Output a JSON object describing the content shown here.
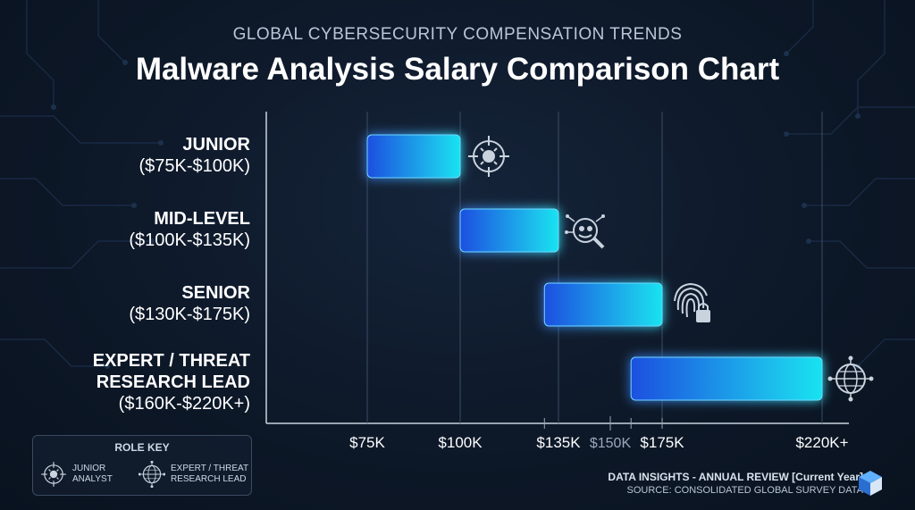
{
  "header": {
    "subtitle": "GLOBAL CYBERSECURITY COMPENSATION TRENDS",
    "title": "Malware Analysis Salary Comparison Chart"
  },
  "chart_data": {
    "type": "bar",
    "orientation": "horizontal",
    "title": "Malware Analysis Salary Comparison Chart",
    "subtitle": "GLOBAL CYBERSECURITY COMPENSATION TRENDS",
    "categories": [
      {
        "name": "JUNIOR",
        "range_label": "($75K-$100K)",
        "min": 75,
        "max": 100,
        "icon": "virus-crosshair-icon"
      },
      {
        "name": "MID-LEVEL",
        "range_label": "($100K-$135K)",
        "min": 100,
        "max": 135,
        "icon": "bug-magnifier-icon"
      },
      {
        "name": "SENIOR",
        "range_label": "($130K-$175K)",
        "min": 130,
        "max": 175,
        "icon": "fingerprint-lock-icon"
      },
      {
        "name": "EXPERT / THREAT\nRESEARCH LEAD",
        "range_label": "($160K-$220K+)",
        "min": 160,
        "max": 220,
        "icon": "globe-network-icon"
      }
    ],
    "x_ticks": [
      {
        "value": 75,
        "label": "$75K",
        "style": "major"
      },
      {
        "value": 100,
        "label": "$100K",
        "style": "major"
      },
      {
        "value": 135,
        "label": "$135K",
        "style": "major"
      },
      {
        "value": 150,
        "label": "$150K",
        "style": "minor"
      },
      {
        "value": 175,
        "label": "$175K",
        "style": "major"
      },
      {
        "value": 220,
        "label": "$220K+",
        "style": "major"
      }
    ],
    "unit": "$K",
    "grid": true,
    "colors": {
      "bar_start": "#1f4fe0",
      "bar_end": "#19e3f0",
      "glow": "#2aa8ff",
      "minor_tick": "#9aa8ba"
    }
  },
  "legend": {
    "title": "ROLE KEY",
    "items": [
      {
        "line1": "JUNIOR",
        "line2": "ANALYST",
        "icon": "virus-crosshair-icon"
      },
      {
        "line1": "EXPERT / THREAT",
        "line2": "RESEARCH LEAD",
        "icon": "globe-network-icon"
      }
    ]
  },
  "footer": {
    "line1": "DATA INSIGHTS - ANNUAL REVIEW [Current Year]",
    "line2": "SOURCE: CONSOLIDATED GLOBAL SURVEY DATA",
    "logo_icon": "cube-logo-icon"
  }
}
